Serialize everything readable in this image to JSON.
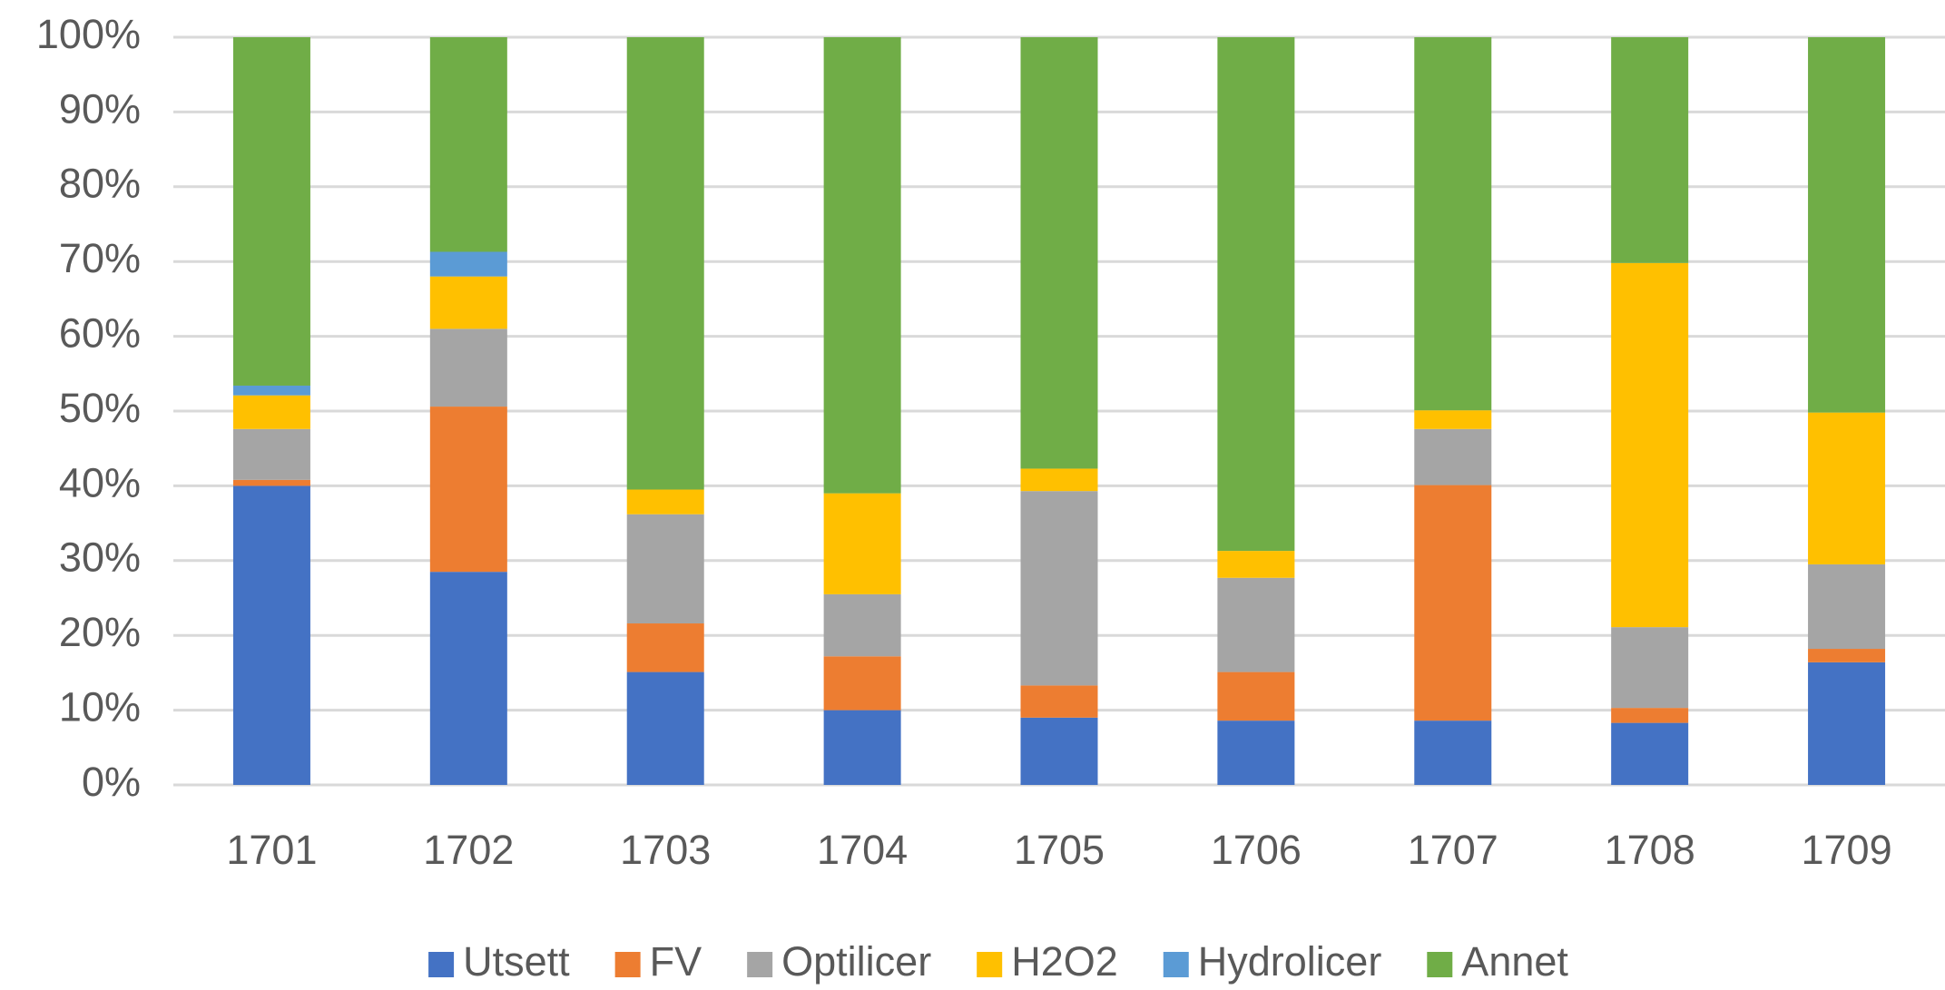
{
  "chart_data": {
    "type": "stacked_bar",
    "categories": [
      "1701",
      "1702",
      "1703",
      "1704",
      "1705",
      "1706",
      "1707",
      "1708",
      "1709"
    ],
    "series": [
      {
        "name": "Utsett",
        "color": "#4472c4",
        "values": [
          40,
          28.5,
          15.1,
          10,
          9,
          8.6,
          8.6,
          8.3,
          16.4
        ]
      },
      {
        "name": "FV",
        "color": "#ed7d31",
        "values": [
          0.8,
          22.1,
          6.5,
          7.2,
          4.3,
          6.5,
          31.5,
          2,
          1.8
        ]
      },
      {
        "name": "Optilicer",
        "color": "#a5a5a5",
        "values": [
          6.8,
          10.4,
          14.6,
          8.3,
          26,
          12.6,
          7.5,
          10.8,
          11.3
        ]
      },
      {
        "name": "H2O2",
        "color": "#ffc000",
        "values": [
          4.5,
          7,
          3.3,
          13.5,
          3,
          3.6,
          2.5,
          48.7,
          20.3
        ]
      },
      {
        "name": "Hydrolicer",
        "color": "#5b9bd5",
        "values": [
          1.3,
          3.3,
          0,
          0,
          0,
          0,
          0,
          0,
          0
        ]
      },
      {
        "name": "Annet",
        "color": "#70ad47",
        "values": [
          46.6,
          28.7,
          60.5,
          61,
          57.7,
          68.7,
          49.9,
          30.2,
          50.2
        ]
      }
    ],
    "ylim": [
      0,
      100
    ],
    "yticks": [
      {
        "value": 0,
        "label": "0%"
      },
      {
        "value": 10,
        "label": "10%"
      },
      {
        "value": 20,
        "label": "20%"
      },
      {
        "value": 30,
        "label": "30%"
      },
      {
        "value": 40,
        "label": "40%"
      },
      {
        "value": 50,
        "label": "50%"
      },
      {
        "value": 60,
        "label": "60%"
      },
      {
        "value": 70,
        "label": "70%"
      },
      {
        "value": 80,
        "label": "80%"
      },
      {
        "value": 90,
        "label": "90%"
      },
      {
        "value": 100,
        "label": "100%"
      }
    ],
    "grid": true,
    "legend": "bottom"
  }
}
